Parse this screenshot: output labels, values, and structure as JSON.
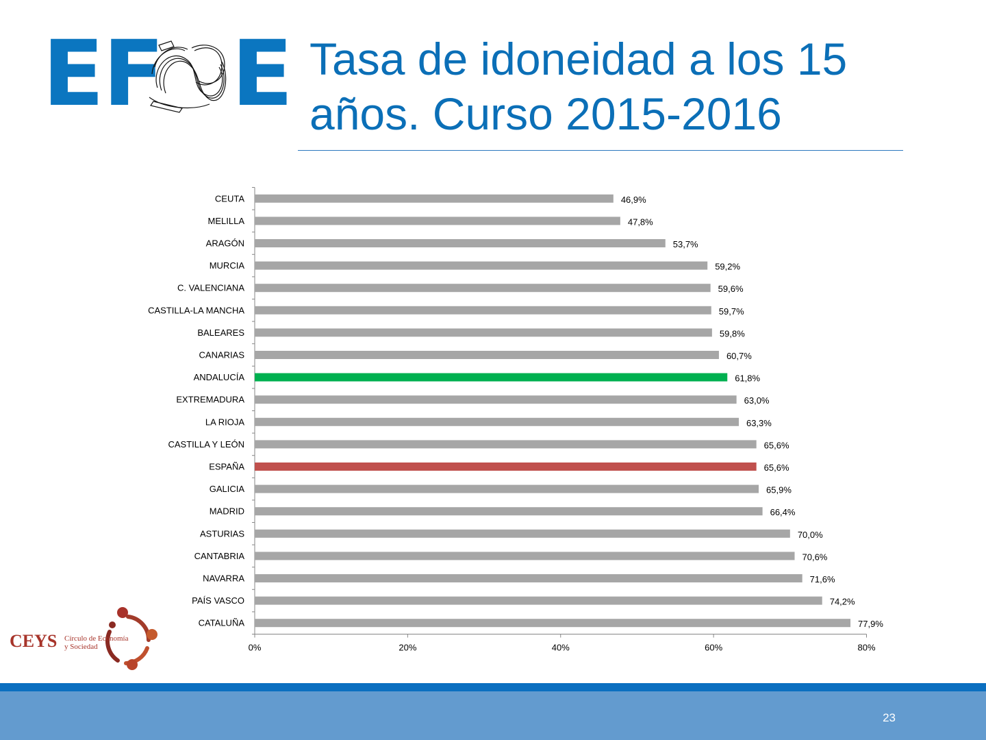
{
  "logo": {
    "left": "EF",
    "right": "E"
  },
  "title": "Tasa de idoneidad a los 15 años. Curso 2015-2016",
  "ceys": {
    "acronym": "CEYS",
    "line1": "Círculo de Economía",
    "line2": "y Sociedad"
  },
  "page_number": "23",
  "colors": {
    "default_bar": "#a6a6a6",
    "andalucia": "#00b050",
    "espana": "#c0504d",
    "title": "#0b6fb7"
  },
  "chart_data": {
    "type": "bar",
    "orientation": "horizontal",
    "categories": [
      "CEUTA",
      "MELILLA",
      "ARAGÓN",
      "MURCIA",
      "C. VALENCIANA",
      "CASTILLA-LA MANCHA",
      "BALEARES",
      "CANARIAS",
      "ANDALUCÍA",
      "EXTREMADURA",
      "LA RIOJA",
      "CASTILLA Y LEÓN",
      "ESPAÑA",
      "GALICIA",
      "MADRID",
      "ASTURIAS",
      "CANTABRIA",
      "NAVARRA",
      "PAÍS VASCO",
      "CATALUÑA"
    ],
    "values": [
      46.9,
      47.8,
      53.7,
      59.2,
      59.6,
      59.7,
      59.8,
      60.7,
      61.8,
      63.0,
      63.3,
      65.6,
      65.6,
      65.9,
      66.4,
      70.0,
      70.6,
      71.6,
      74.2,
      77.9
    ],
    "value_labels": [
      "46,9%",
      "47,8%",
      "53,7%",
      "59,2%",
      "59,6%",
      "59,7%",
      "59,8%",
      "60,7%",
      "61,8%",
      "63,0%",
      "63,3%",
      "65,6%",
      "65,6%",
      "65,9%",
      "66,4%",
      "70,0%",
      "70,6%",
      "71,6%",
      "74,2%",
      "77,9%"
    ],
    "highlights": {
      "ANDALUCÍA": "#00b050",
      "ESPAÑA": "#c0504d"
    },
    "xlim": [
      0,
      80
    ],
    "xticks": [
      0,
      20,
      40,
      60,
      80
    ],
    "xtick_labels": [
      "0%",
      "20%",
      "40%",
      "60%",
      "80%"
    ],
    "grid": false,
    "legend": "none"
  }
}
